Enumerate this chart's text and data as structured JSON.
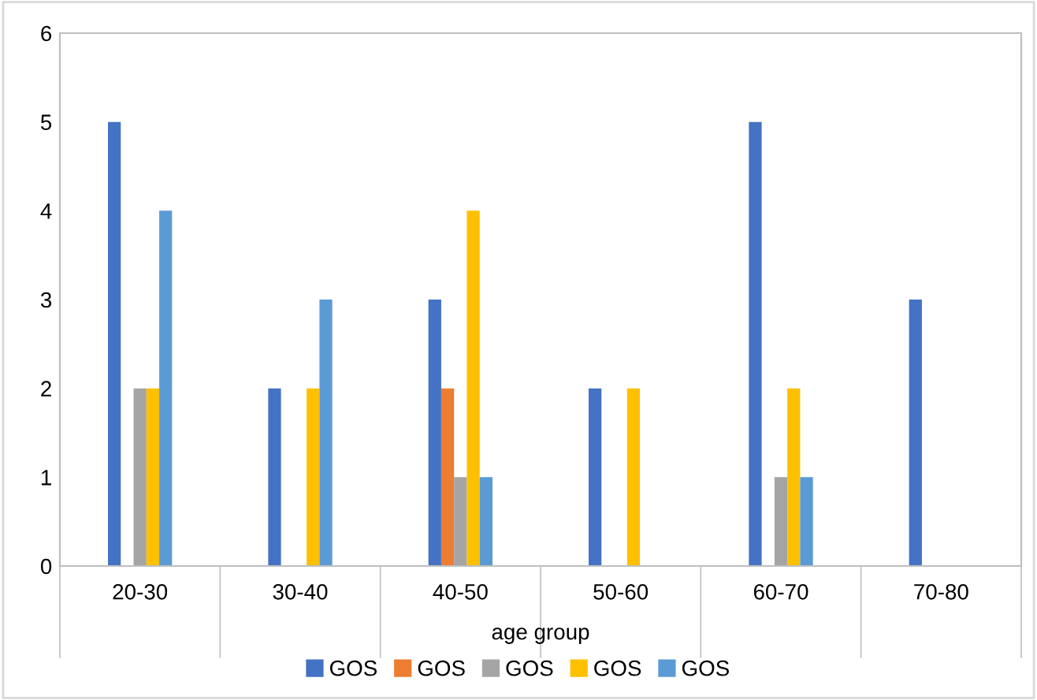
{
  "chart_data": {
    "type": "bar",
    "xlabel": "age group",
    "categories": [
      "20-30",
      "30-40",
      "40-50",
      "50-60",
      "60-70",
      "70-80"
    ],
    "series": [
      {
        "name": "GOS",
        "color": "#4472c4",
        "values": [
          5,
          2,
          3,
          2,
          5,
          3
        ]
      },
      {
        "name": "GOS",
        "color": "#ed7d31",
        "values": [
          0,
          0,
          2,
          0,
          0,
          0
        ]
      },
      {
        "name": "GOS",
        "color": "#a5a5a5",
        "values": [
          2,
          0,
          1,
          0,
          1,
          0
        ]
      },
      {
        "name": "GOS",
        "color": "#ffc000",
        "values": [
          2,
          2,
          4,
          2,
          2,
          0
        ]
      },
      {
        "name": "GOS",
        "color": "#5b9bd5",
        "values": [
          4,
          3,
          1,
          0,
          1,
          0
        ]
      }
    ],
    "ylim": [
      0,
      6
    ],
    "yticks": [
      0,
      1,
      2,
      3,
      4,
      5,
      6
    ],
    "grid": false,
    "legend": "bottom"
  }
}
